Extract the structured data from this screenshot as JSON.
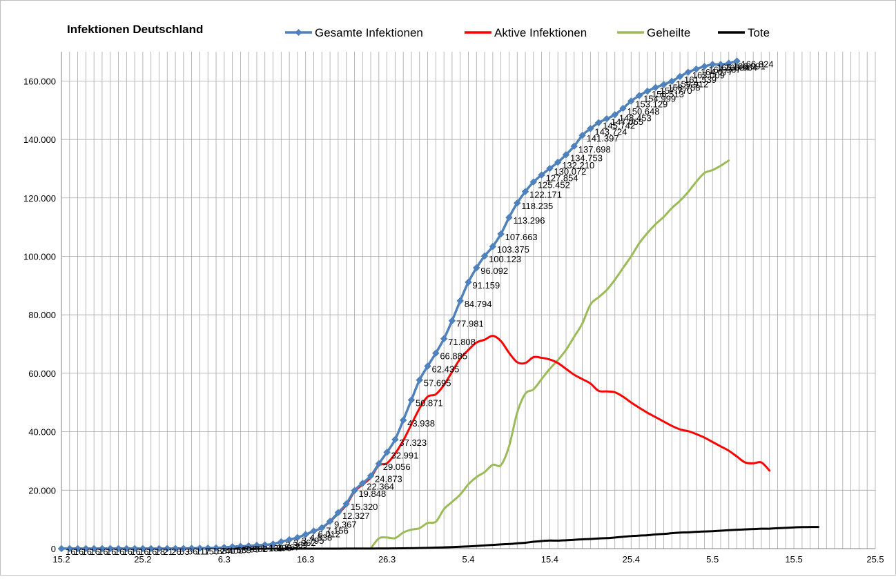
{
  "chart_data": {
    "type": "line",
    "title": "Infektionen Deutschland",
    "xlabel": "",
    "ylabel": "",
    "x_start": "15.2",
    "x_ticks": [
      "15.2",
      "25.2",
      "6.3",
      "16.3",
      "26.3",
      "5.4",
      "15.4",
      "25.4",
      "5.5",
      "15.5",
      "25.5"
    ],
    "ylim": [
      0,
      170000
    ],
    "y_ticks": [
      "0",
      "20.000",
      "40.000",
      "60.000",
      "80.000",
      "100.000",
      "120.000",
      "140.000",
      "160.000"
    ],
    "grid": "vertical-daily and horizontal",
    "legend": "top",
    "series": [
      {
        "name": "Gesamte Infektionen",
        "color": "#4f81bd",
        "marker": "diamond",
        "start_day": 0,
        "values": [
          16,
          16,
          16,
          16,
          16,
          16,
          16,
          16,
          16,
          16,
          16,
          18,
          21,
          26,
          53,
          66,
          117,
          150,
          188,
          240,
          400,
          639,
          795,
          902,
          1139,
          1296,
          1567,
          2369,
          3062,
          3795,
          4838,
          6012,
          7156,
          9367,
          12327,
          15320,
          19848,
          22364,
          24873,
          29056,
          32991,
          37323,
          43938,
          50871,
          57695,
          62435,
          66885,
          71808,
          77981,
          84794,
          91159,
          96092,
          100123,
          103375,
          107663,
          113296,
          118235,
          122171,
          125452,
          127854,
          130072,
          132210,
          134753,
          137698,
          141397,
          143724,
          145742,
          147065,
          148453,
          150648,
          153129,
          154999,
          156513,
          157770,
          158758,
          159912,
          161539,
          163009,
          164077,
          164967,
          165664,
          165664,
          166091,
          166824
        ],
        "labels": [
          "16",
          "16",
          "16",
          "16",
          "16",
          "16",
          "16",
          "16",
          "16",
          "16",
          "16",
          "18",
          "21",
          "26",
          "53",
          "66",
          "117",
          "150",
          "188",
          "240",
          "400",
          "639",
          "795",
          "902",
          "1.139",
          "1.296",
          "1.567",
          "2.369",
          "3.062",
          "3.795",
          "4.838",
          "6.012",
          "7.156",
          "9.367",
          "12.327",
          "15.320",
          "19.848",
          "22.364",
          "24.873",
          "29.056",
          "32.991",
          "37.323",
          "43.938",
          "50.871",
          "57.695",
          "62.435",
          "66.885",
          "71.808",
          "77.981",
          "84.794",
          "91.159",
          "96.092",
          "100.123",
          "103.375",
          "107.663",
          "113.296",
          "118.235",
          "122.171",
          "125.452",
          "127.854",
          "130.072",
          "132.210",
          "134.753",
          "137.698",
          "141.397",
          "143.724",
          "145.742",
          "147.065",
          "148.453",
          "150.648",
          "153.129",
          "154.999",
          "156.513",
          "157.770",
          "158.758",
          "159.912",
          "161.539",
          "163.009",
          "164.077",
          "164.967",
          "165.664",
          "165.664",
          "166.091",
          "166.824"
        ]
      },
      {
        "name": "Aktive Infektionen",
        "color": "#ff0000",
        "start_day": 0,
        "values": [
          2,
          2,
          2,
          2,
          2,
          2,
          2,
          2,
          2,
          2,
          2,
          4,
          7,
          12,
          39,
          52,
          103,
          136,
          174,
          226,
          383,
          622,
          778,
          884,
          1120,
          1276,
          1547,
          2346,
          3036,
          3765,
          4800,
          5960,
          7050,
          9200,
          12000,
          14900,
          19500,
          21900,
          24300,
          28500,
          29200,
          32500,
          37000,
          42500,
          48000,
          52000,
          52800,
          56000,
          60500,
          65000,
          68000,
          70500,
          71500,
          72800,
          71000,
          67000,
          63800,
          63500,
          65500,
          65300,
          64700,
          63500,
          61500,
          59500,
          58000,
          56500,
          54000,
          53800,
          53500,
          52000,
          50000,
          48200,
          46500,
          45000,
          43500,
          42000,
          40800,
          40200,
          39200,
          38000,
          36500,
          35000,
          33500,
          31500,
          29500,
          29200,
          29500,
          26700
        ],
        "labels": []
      },
      {
        "name": "Geheilte",
        "color": "#9bbb59",
        "start_day": 38,
        "values": [
          0,
          3500,
          3800,
          3600,
          5500,
          6500,
          7000,
          8800,
          9200,
          13500,
          16000,
          18500,
          22000,
          24500,
          26200,
          28700,
          28600,
          35000,
          46500,
          53000,
          54500,
          58000,
          61500,
          64500,
          68000,
          72500,
          77000,
          83500,
          86000,
          88500,
          92000,
          96000,
          100000,
          104500,
          108000,
          111000,
          113500,
          116500,
          119000,
          122000,
          125500,
          128500,
          129500,
          131000,
          132800
        ],
        "labels": []
      },
      {
        "name": "Tote",
        "color": "#000000",
        "start_day": 20,
        "values": [
          0,
          0,
          0,
          0,
          0,
          0,
          1,
          2,
          2,
          3,
          6,
          8,
          9,
          11,
          13,
          17,
          24,
          28,
          31,
          44,
          68,
          94,
          123,
          157,
          206,
          267,
          342,
          433,
          533,
          645,
          775,
          920,
          1107,
          1275,
          1444,
          1584,
          1810,
          2016,
          2349,
          2607,
          2767,
          2736,
          2871,
          3022,
          3194,
          3294,
          3495,
          3594,
          3804,
          4052,
          4294,
          4459,
          4586,
          4862,
          5033,
          5279,
          5500,
          5575,
          5760,
          5877,
          5976,
          6126,
          6314,
          6467,
          6575,
          6693,
          6812,
          6831,
          6993,
          7119,
          7266,
          7369,
          7395,
          7417
        ]
      }
    ]
  }
}
